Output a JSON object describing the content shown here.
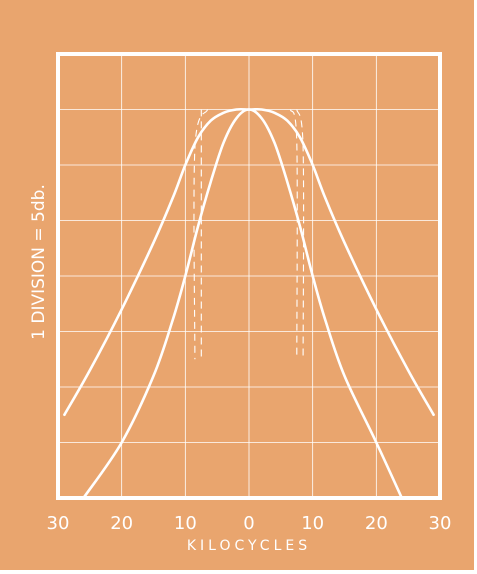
{
  "chart_data": {
    "type": "line",
    "title": "",
    "xlabel": "KILOCYCLES",
    "ylabel": "1 DIVISION = 5db.",
    "x_tick_labels": [
      "30",
      "20",
      "10",
      "0",
      "10",
      "20",
      "30"
    ],
    "x_ticks": [
      -30,
      -20,
      -10,
      0,
      10,
      20,
      30
    ],
    "xlim": [
      -30,
      30
    ],
    "ylim": [
      -35,
      5
    ],
    "grid": true,
    "legend": "none",
    "colors": {
      "background": "#E9A56E",
      "lines": "#FFFFFF"
    },
    "series": [
      {
        "values": [
          [
            -29,
            -27.5
          ],
          [
            -25,
            -23.5
          ],
          [
            -20,
            -18
          ],
          [
            -15,
            -12
          ],
          [
            -12,
            -8
          ],
          [
            -10,
            -5
          ],
          [
            -8,
            -2.5
          ],
          [
            -6,
            -1
          ],
          [
            -4,
            -0.3
          ],
          [
            -2,
            0
          ],
          [
            0,
            0
          ],
          [
            2,
            0
          ],
          [
            4,
            -0.3
          ],
          [
            6,
            -1
          ],
          [
            8,
            -2.5
          ],
          [
            10,
            -5
          ],
          [
            12,
            -8
          ],
          [
            15,
            -12
          ],
          [
            20,
            -18
          ],
          [
            25,
            -23.5
          ],
          [
            29,
            -27.5
          ]
        ]
      },
      {
        "values": [
          [
            -26,
            -35
          ],
          [
            -20,
            -30
          ],
          [
            -15,
            -24
          ],
          [
            -12,
            -19
          ],
          [
            -10,
            -15
          ],
          [
            -8,
            -10.5
          ],
          [
            -6,
            -6.5
          ],
          [
            -4,
            -3
          ],
          [
            -2,
            -0.8
          ],
          [
            0,
            0
          ],
          [
            2,
            -0.8
          ],
          [
            4,
            -3
          ],
          [
            6,
            -6.5
          ],
          [
            8,
            -10.5
          ],
          [
            10,
            -15
          ],
          [
            12,
            -19
          ],
          [
            15,
            -24
          ],
          [
            20,
            -30
          ],
          [
            24,
            -35
          ]
        ]
      }
    ],
    "dashed_guides": [
      {
        "values": [
          [
            -6.5,
            0
          ],
          [
            -8.5,
            -3.5
          ],
          [
            -8.5,
            -22.5
          ]
        ]
      },
      {
        "values": [
          [
            -7.5,
            0
          ],
          [
            -7.5,
            -3
          ],
          [
            -7.5,
            -22.5
          ]
        ]
      },
      {
        "values": [
          [
            6.5,
            0
          ],
          [
            7.5,
            -3
          ],
          [
            7.5,
            -22.5
          ]
        ]
      },
      {
        "values": [
          [
            7.5,
            0
          ],
          [
            8.5,
            -3.5
          ],
          [
            8.5,
            -22.5
          ]
        ]
      }
    ]
  }
}
